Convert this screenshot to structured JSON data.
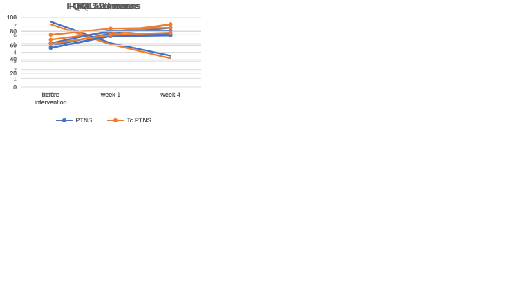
{
  "colors": {
    "ptns": "#4472C4",
    "tc_ptns": "#ED7D31",
    "gridline": "#D9D9D9",
    "axis_text": "#595959",
    "title_text": "#595959",
    "background": "#FFFFFF"
  },
  "legend": {
    "ptns_label": "PTNS",
    "tc_ptns_label": "Tc PTNS"
  },
  "chart_data": [
    {
      "type": "line",
      "title": "OABSS means",
      "categories": [
        "befor\nintervention",
        "week 1",
        "week 4"
      ],
      "series": [
        {
          "name": "PTNS",
          "color": "#4472C4",
          "values": [
            7.5,
            5.05,
            3.6
          ]
        },
        {
          "name": "Tc PTNS",
          "color": "#ED7D31",
          "values": [
            7.2,
            4.9,
            3.3
          ]
        }
      ],
      "ylim": [
        0,
        8
      ],
      "ytick_step": 1,
      "markers": false,
      "grid": true,
      "legend_position": "bottom",
      "xlabel": "",
      "ylabel": ""
    },
    {
      "type": "line",
      "title": "I-QOL means",
      "categories": [
        "before\nintervention",
        "week 1",
        "week 4"
      ],
      "series": [
        {
          "name": "PTNS",
          "color": "#4472C4",
          "values": [
            59,
            77,
            85
          ]
        },
        {
          "name": "Tc PTNS",
          "color": "#ED7D31",
          "values": [
            68,
            79,
            90
          ]
        }
      ],
      "ylim": [
        0,
        100
      ],
      "ytick_step": 20,
      "markers": true,
      "grid": true,
      "legend_position": "bottom",
      "xlabel": "",
      "ylabel": ""
    },
    {
      "type": "line",
      "title": "I-QOL ALB means",
      "categories": [
        "before\nintervention",
        "week 1",
        "week 4"
      ],
      "series": [
        {
          "name": "PTNS",
          "color": "#4472C4",
          "values": [
            56,
            73,
            74
          ]
        },
        {
          "name": "Tc PTNS",
          "color": "#ED7D31",
          "values": [
            62,
            75,
            90
          ]
        }
      ],
      "ylim": [
        0,
        100
      ],
      "ytick_step": 20,
      "markers": true,
      "grid": true,
      "legend_position": "bottom",
      "xlabel": "",
      "ylabel": ""
    },
    {
      "type": "line",
      "title": "I-QOL PSI means",
      "categories": [
        "before\nintervention",
        "week 1",
        "week 4"
      ],
      "series": [
        {
          "name": "PTNS",
          "color": "#4472C4",
          "values": [
            63,
            81,
            81
          ]
        },
        {
          "name": "Tc PTNS",
          "color": "#ED7D31",
          "values": [
            75,
            84,
            85
          ]
        }
      ],
      "ylim": [
        0,
        100
      ],
      "ytick_step": 20,
      "markers": true,
      "grid": true,
      "legend_position": "bottom",
      "xlabel": "",
      "ylabel": ""
    },
    {
      "type": "line",
      "title": "I-QOL SE means",
      "categories": [
        "before\nintervention",
        "week 1",
        "week 4"
      ],
      "series": [
        {
          "name": "PTNS",
          "color": "#4472C4",
          "values": [
            56,
            74,
            76
          ]
        },
        {
          "name": "Tc PTNS",
          "color": "#ED7D31",
          "values": [
            62,
            75,
            78
          ]
        }
      ],
      "ylim": [
        0,
        100
      ],
      "ytick_step": 20,
      "markers": true,
      "grid": true,
      "legend_position": "bottom",
      "xlabel": "",
      "ylabel": ""
    }
  ]
}
